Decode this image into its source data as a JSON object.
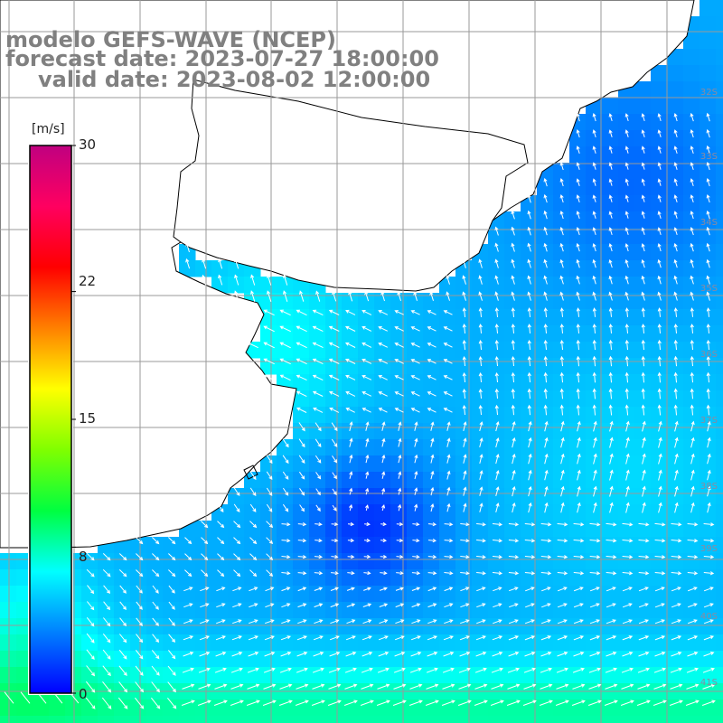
{
  "title": {
    "line1": "modelo GEFS-WAVE (NCEP)",
    "line2": "forecast date: 2023-07-27 18:00:00",
    "line3": "valid date: 2023-08-02 12:00:00"
  },
  "colorbar": {
    "unit": "[m/s]",
    "ticks": [
      "30",
      "22",
      "15",
      "8",
      "0"
    ],
    "tick_values": [
      30,
      22,
      15,
      8,
      0
    ],
    "min": 0,
    "max": 30,
    "colors": [
      "#0000ff",
      "#0080ff",
      "#00ffff",
      "#00ff40",
      "#80ff00",
      "#ffff00",
      "#ff8000",
      "#ff0000",
      "#ff0060",
      "#c00080"
    ]
  },
  "map": {
    "variable": "wind speed and direction",
    "lat_labels": [
      "32S",
      "33S",
      "34S",
      "35S",
      "36S",
      "37S",
      "38S",
      "39S",
      "40S",
      "41S"
    ],
    "land_color": "#ffffff",
    "grid_color": "#9a9a9a",
    "arrow_color": "#ffffff"
  }
}
